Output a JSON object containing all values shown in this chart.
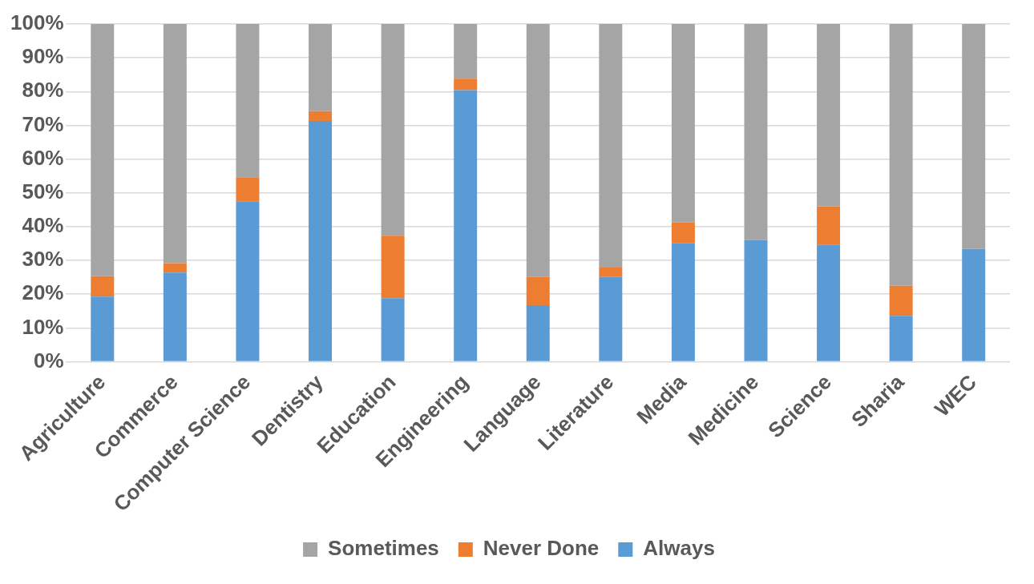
{
  "chart_data": {
    "type": "bar",
    "stacked": true,
    "categories": [
      "Agriculture",
      "Commerce",
      "Computer Science",
      "Dentistry",
      "Education",
      "Engineering",
      "Language",
      "Literature",
      "Media",
      "Medicine",
      "Science",
      "Sharia",
      "WEC"
    ],
    "series": [
      {
        "name": "Always",
        "color": "#5b9bd5",
        "values": [
          19.3,
          26.4,
          47.5,
          71.3,
          18.8,
          80.4,
          16.7,
          25.1,
          35.2,
          36.0,
          34.7,
          13.6,
          33.4
        ]
      },
      {
        "name": "Never Done",
        "color": "#ed7d31",
        "values": [
          6.0,
          2.8,
          7.1,
          2.9,
          18.5,
          3.4,
          8.4,
          2.8,
          6.1,
          0,
          11.3,
          8.9,
          0
        ]
      },
      {
        "name": "Sometimes",
        "color": "#a5a5a5",
        "values": [
          74.7,
          70.8,
          45.4,
          25.8,
          62.7,
          16.2,
          74.9,
          72.1,
          58.7,
          64.0,
          54.0,
          77.5,
          66.6
        ]
      }
    ],
    "ylim": [
      0,
      100
    ],
    "yticks": [
      {
        "value": 0,
        "label": "0%"
      },
      {
        "value": 10,
        "label": "10%"
      },
      {
        "value": 20,
        "label": "20%"
      },
      {
        "value": 30,
        "label": "30%"
      },
      {
        "value": 40,
        "label": "40%"
      },
      {
        "value": 50,
        "label": "50%"
      },
      {
        "value": 60,
        "label": "60%"
      },
      {
        "value": 70,
        "label": "70%"
      },
      {
        "value": 80,
        "label": "80%"
      },
      {
        "value": 90,
        "label": "90%"
      },
      {
        "value": 100,
        "label": "100%"
      }
    ],
    "grid": "y",
    "legend": "bottom"
  }
}
